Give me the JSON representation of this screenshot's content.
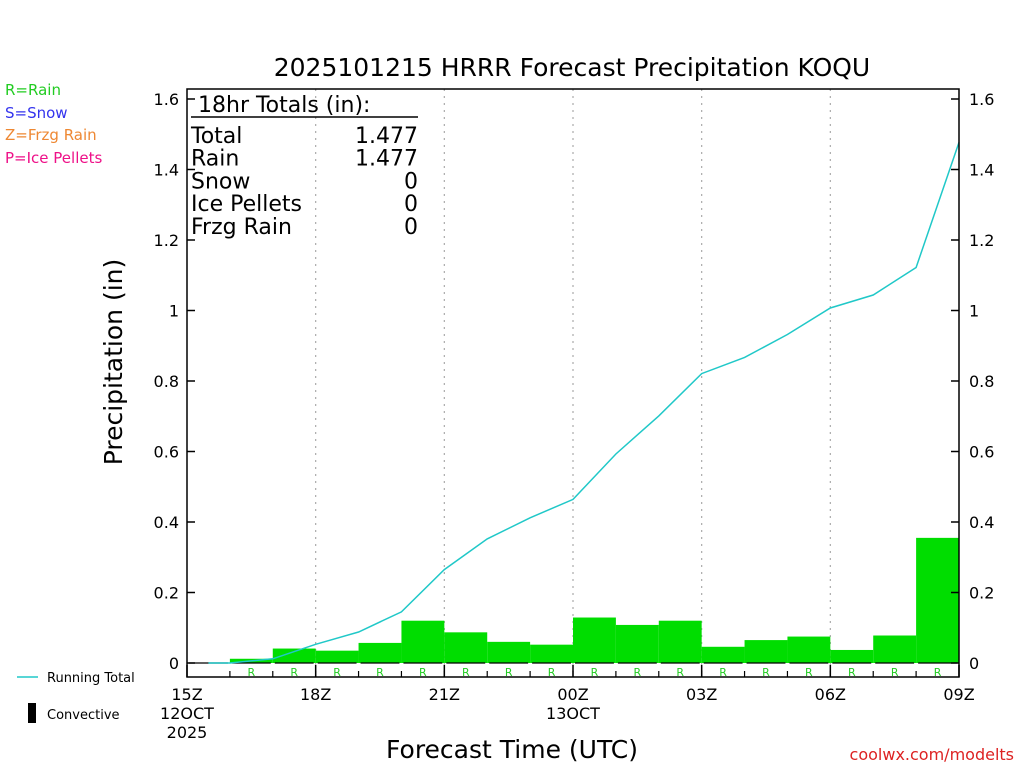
{
  "chart_data": {
    "type": "bar",
    "title": "2025101215 HRRR Forecast Precipitation KOQU",
    "xlabel": "Forecast Time (UTC)",
    "ylabel": "Precipitation (in)",
    "ylim": [
      0,
      1.6
    ],
    "yticks": [
      "0",
      "0.2",
      "0.4",
      "0.6",
      "0.8",
      "1",
      "1.2",
      "1.4",
      "1.6"
    ],
    "xticks": [
      {
        "hour": 0,
        "lines": [
          "15Z",
          "12OCT",
          "2025"
        ]
      },
      {
        "hour": 3,
        "lines": [
          "18Z"
        ]
      },
      {
        "hour": 6,
        "lines": [
          "21Z"
        ]
      },
      {
        "hour": 9,
        "lines": [
          "00Z",
          "13OCT"
        ]
      },
      {
        "hour": 12,
        "lines": [
          "03Z"
        ]
      },
      {
        "hour": 15,
        "lines": [
          "06Z"
        ]
      },
      {
        "hour": 18,
        "lines": [
          "09Z"
        ]
      }
    ],
    "grid_hours": [
      3,
      6,
      9,
      12,
      15
    ],
    "hours": [
      1,
      2,
      3,
      4,
      5,
      6,
      7,
      8,
      9,
      10,
      11,
      12,
      13,
      14,
      15,
      16,
      17,
      18
    ],
    "hourly_precip": [
      0.0,
      0.012,
      0.041,
      0.035,
      0.057,
      0.12,
      0.087,
      0.06,
      0.052,
      0.129,
      0.108,
      0.12,
      0.046,
      0.065,
      0.075,
      0.037,
      0.078,
      0.355
    ],
    "precip_type": [
      "",
      "R",
      "R",
      "R",
      "R",
      "R",
      "R",
      "R",
      "R",
      "R",
      "R",
      "R",
      "R",
      "R",
      "R",
      "R",
      "R",
      "R"
    ],
    "running_total": [
      0.0,
      0.012,
      0.053,
      0.088,
      0.145,
      0.265,
      0.352,
      0.412,
      0.464,
      0.593,
      0.701,
      0.821,
      0.867,
      0.932,
      1.007,
      1.044,
      1.122,
      1.477
    ],
    "series": [
      {
        "name": "Running Total",
        "color": "#20c8c8"
      },
      {
        "name": "Convective",
        "color": "#000000"
      }
    ],
    "bar_color": "#00dd00",
    "type_legend": [
      {
        "text": "R=Rain",
        "color": "#22cc22"
      },
      {
        "text": "S=Snow",
        "color": "#3333ee"
      },
      {
        "text": "Z=Frzg Rain",
        "color": "#ee8833"
      },
      {
        "text": "P=Ice Pellets",
        "color": "#ee1188"
      }
    ],
    "totals": {
      "heading": "18hr Totals (in):",
      "rows": [
        {
          "label": "Total",
          "value": "1.477"
        },
        {
          "label": "Rain",
          "value": "1.477"
        },
        {
          "label": "Snow",
          "value": "0"
        },
        {
          "label": "Ice Pellets",
          "value": "0"
        },
        {
          "label": "Frzg Rain",
          "value": "0"
        }
      ]
    },
    "credit": "coolwx.com/modelts"
  }
}
